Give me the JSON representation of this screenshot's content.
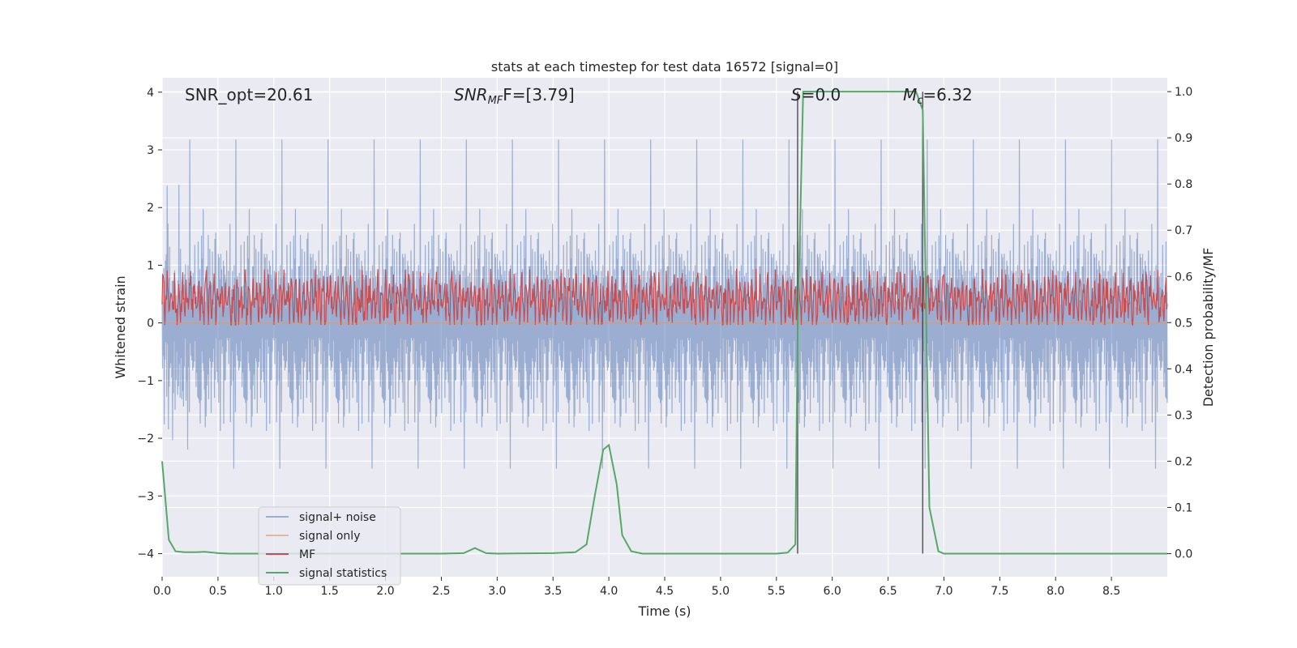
{
  "chart_data": {
    "type": "line",
    "title": "stats at each timestep for test data 16572 [signal=0]",
    "xlabel": "Time (s)",
    "ylabel": "Whitened strain",
    "ylabel_right": "Detection probability/MF",
    "xlim": [
      0.0,
      9.0
    ],
    "ylim": [
      -4.4,
      4.25
    ],
    "ylim_right": [
      -0.05,
      1.03
    ],
    "x_ticks": [
      "0.0",
      "0.5",
      "1.0",
      "1.5",
      "2.0",
      "2.5",
      "3.0",
      "3.5",
      "4.0",
      "4.5",
      "5.0",
      "5.5",
      "6.0",
      "6.5",
      "7.0",
      "7.5",
      "8.0",
      "8.5"
    ],
    "y_ticks": [
      "−4",
      "−3",
      "−2",
      "−1",
      "0",
      "1",
      "2",
      "3",
      "4"
    ],
    "y_ticks_right": [
      "0.0",
      "0.1",
      "0.2",
      "0.3",
      "0.4",
      "0.5",
      "0.6",
      "0.7",
      "0.8",
      "0.9",
      "1.0"
    ],
    "grid": true,
    "legend_position": "lower-left",
    "annotations": {
      "snr_opt": "SNR_opt=20.61",
      "snr_mf_main": "SNR",
      "snr_mf_sub": "MF",
      "snr_mf_rest": "F=[3.79]",
      "s_main": "S",
      "s_rest": "=0.0",
      "mc_main": "M",
      "mc_sub": "c",
      "mc_rest": "=6.32"
    },
    "vertical_lines_x": [
      5.69,
      6.81
    ],
    "series": [
      {
        "name": "signal+ noise",
        "color": "#4c72b0",
        "alpha": 0.5,
        "axis": "left",
        "description_range": [
          -3.4,
          3.9
        ]
      },
      {
        "name": "signal only",
        "color": "#dd8452",
        "alpha": 0.5,
        "axis": "left",
        "values_constant": 0
      },
      {
        "name": "MF",
        "color": "#c44e52",
        "axis": "right",
        "description_range": [
          0.5,
          0.63
        ]
      },
      {
        "name": "signal statistics",
        "color": "#55a868",
        "axis": "right",
        "x": [
          0.0,
          0.06,
          0.12,
          0.2,
          0.3,
          0.38,
          0.5,
          0.6,
          0.8,
          1.0,
          1.5,
          2.0,
          2.5,
          2.7,
          2.8,
          2.9,
          3.0,
          3.5,
          3.7,
          3.8,
          3.87,
          3.95,
          4.0,
          4.07,
          4.12,
          4.2,
          4.3,
          4.5,
          5.0,
          5.5,
          5.6,
          5.67,
          5.69,
          5.74,
          6.0,
          6.5,
          6.75,
          6.81,
          6.87,
          6.95,
          7.0,
          8.0,
          9.0
        ],
        "values": [
          0.2,
          0.03,
          0.005,
          0.003,
          0.003,
          0.004,
          0.001,
          0.0,
          0.0,
          0.0,
          0.0,
          0.0,
          0.0,
          0.001,
          0.012,
          0.001,
          0.0,
          0.001,
          0.003,
          0.02,
          0.12,
          0.225,
          0.235,
          0.15,
          0.04,
          0.005,
          0.0,
          0.0,
          0.0,
          0.0,
          0.002,
          0.02,
          0.48,
          1.0,
          1.0,
          1.0,
          1.0,
          0.96,
          0.1,
          0.005,
          0.0,
          0.0,
          0.0
        ]
      }
    ]
  }
}
